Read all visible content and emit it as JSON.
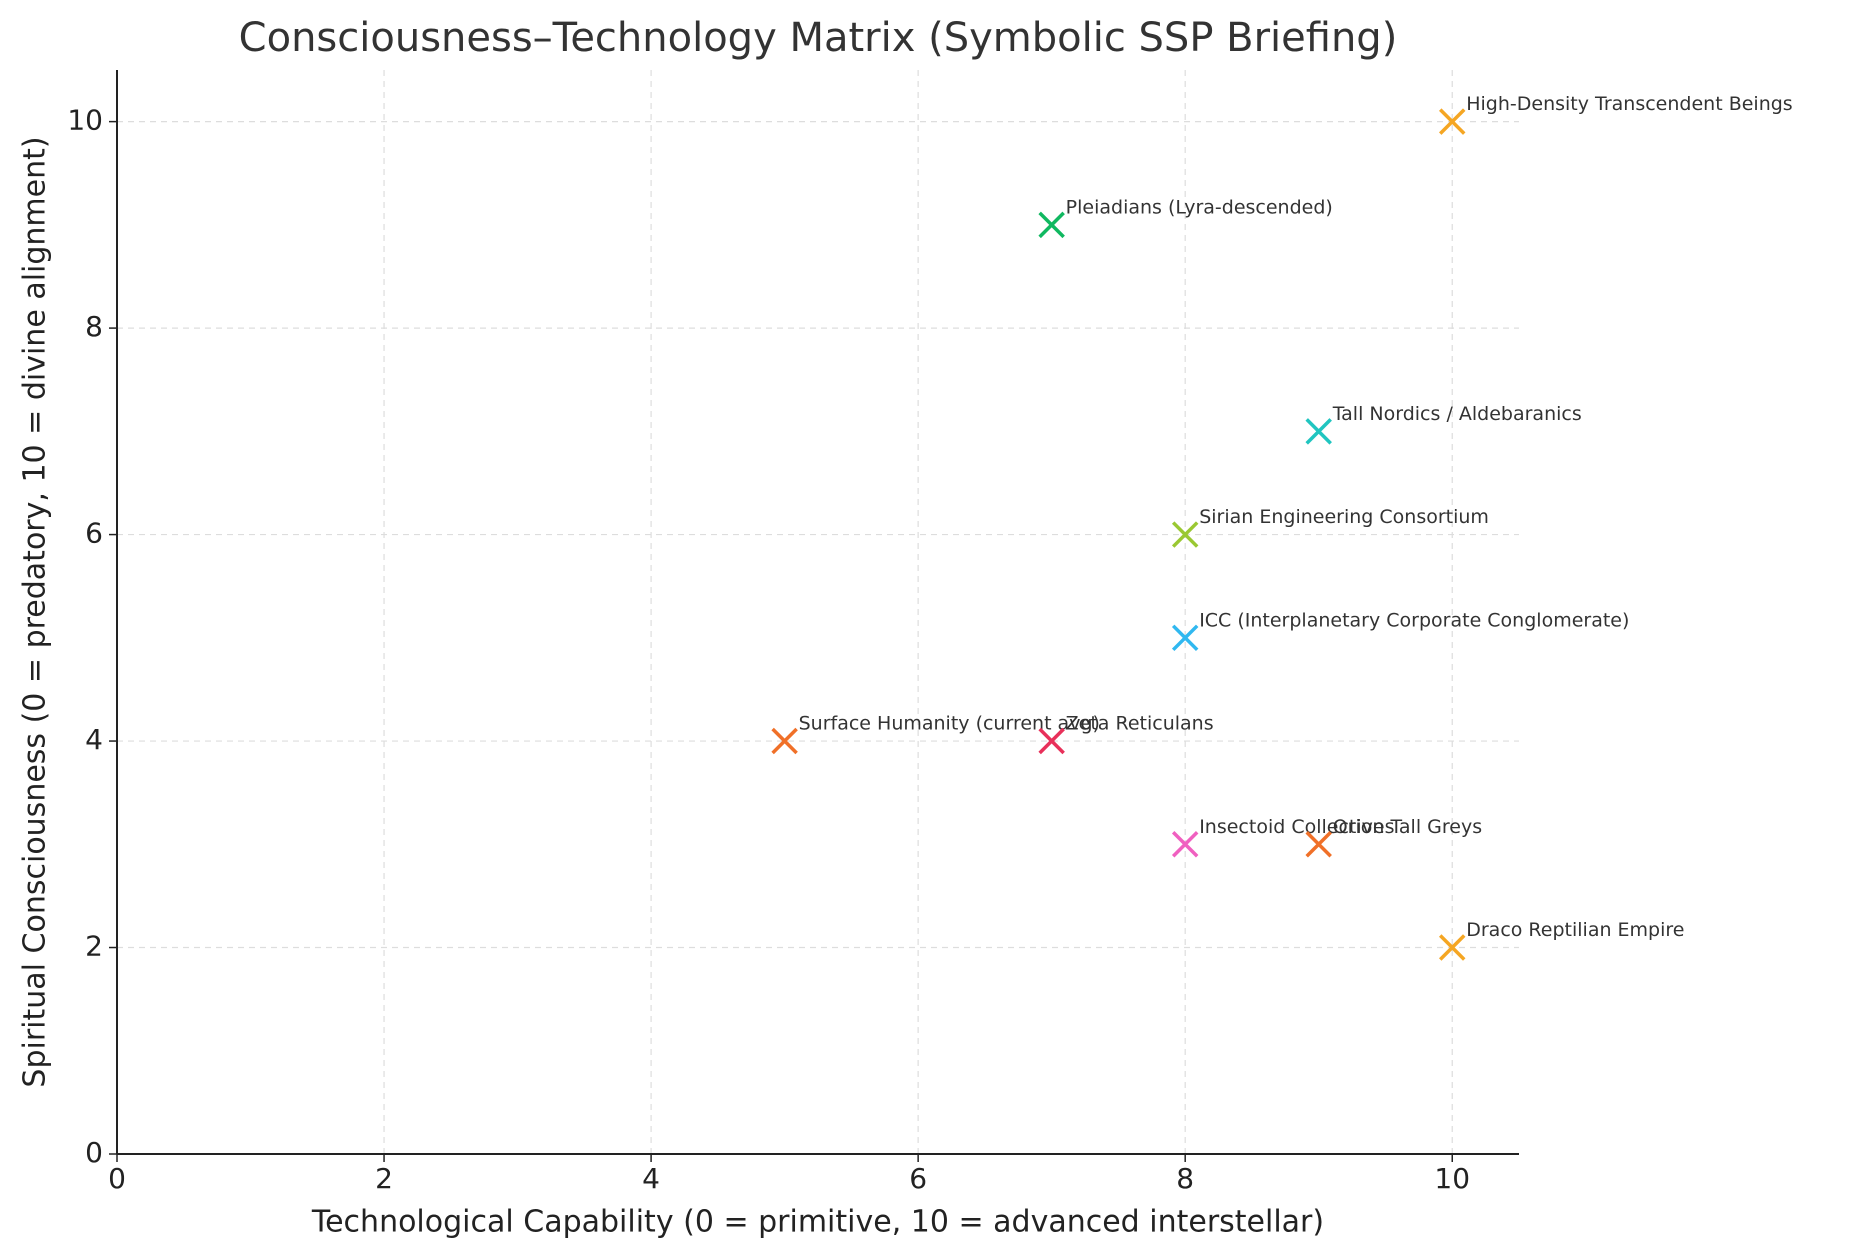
{
  "chart_data": {
    "type": "scatter",
    "title": "Consciousness–Technology Matrix (Symbolic SSP Briefing)",
    "x_label": "Technological Capability (0 = primitive, 10 = advanced interstellar)",
    "y_label": "Spiritual Consciousness (0 = predatory, 10 = divine alignment)",
    "marker": "x",
    "grid": true,
    "xlim": [
      0,
      10.5
    ],
    "ylim": [
      0,
      10.5
    ],
    "xticks": [
      0,
      2,
      4,
      6,
      8,
      10
    ],
    "yticks": [
      0,
      2,
      4,
      6,
      8,
      10
    ],
    "points": [
      {
        "label": "Surface Humanity (current avg)",
        "x": 5,
        "y": 4,
        "color": "#f07028"
      },
      {
        "label": "Zeta Reticulans",
        "x": 7,
        "y": 4,
        "color": "#e8305a"
      },
      {
        "label": "Insectoid Collectives",
        "x": 8,
        "y": 3,
        "color": "#f060c0"
      },
      {
        "label": "Orion Tall Greys",
        "x": 9,
        "y": 3,
        "color": "#f07028"
      },
      {
        "label": "Draco Reptilian Empire",
        "x": 10,
        "y": 2,
        "color": "#f5a623"
      },
      {
        "label": "ICC (Interplanetary Corporate Conglomerate)",
        "x": 8,
        "y": 5,
        "color": "#30b8f0"
      },
      {
        "label": "Sirian Engineering Consortium",
        "x": 8,
        "y": 6,
        "color": "#9ac832"
      },
      {
        "label": "Tall Nordics / Aldebaranics",
        "x": 9,
        "y": 7,
        "color": "#20c5c0"
      },
      {
        "label": "Pleiadians (Lyra-descended)",
        "x": 7,
        "y": 9,
        "color": "#10b860"
      },
      {
        "label": "High-Density Transcendent Beings",
        "x": 10,
        "y": 10,
        "color": "#f5a623"
      }
    ]
  }
}
